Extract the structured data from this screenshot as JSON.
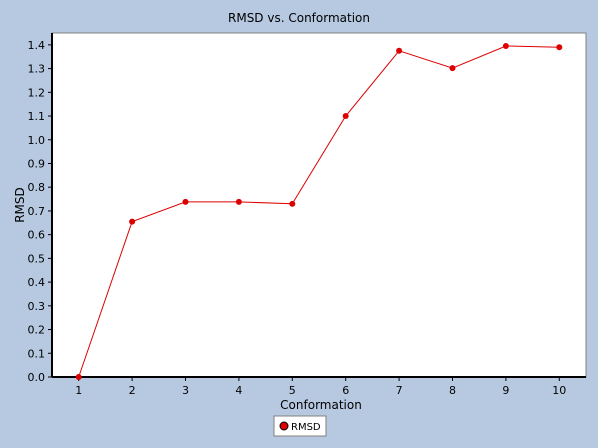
{
  "chart_data": {
    "type": "line",
    "title": "RMSD vs. Conformation",
    "xlabel": "Conformation",
    "ylabel": "RMSD",
    "x": [
      1,
      2,
      3,
      4,
      5,
      6,
      7,
      8,
      9,
      10
    ],
    "xlim": [
      0.5,
      10.5
    ],
    "ylim": [
      0.0,
      1.45
    ],
    "x_ticks": [
      "1",
      "2",
      "3",
      "4",
      "5",
      "6",
      "7",
      "8",
      "9",
      "10"
    ],
    "y_ticks": [
      "0.0",
      "0.1",
      "0.2",
      "0.3",
      "0.4",
      "0.5",
      "0.6",
      "0.7",
      "0.8",
      "0.9",
      "1.0",
      "1.1",
      "1.2",
      "1.3",
      "1.4"
    ],
    "grid": false,
    "legend_position": "bottom-center",
    "series": [
      {
        "name": "RMSD",
        "color": "#dd0000",
        "values": [
          0.0,
          0.655,
          0.738,
          0.738,
          0.73,
          1.1,
          1.375,
          1.302,
          1.395,
          1.39
        ]
      }
    ]
  }
}
